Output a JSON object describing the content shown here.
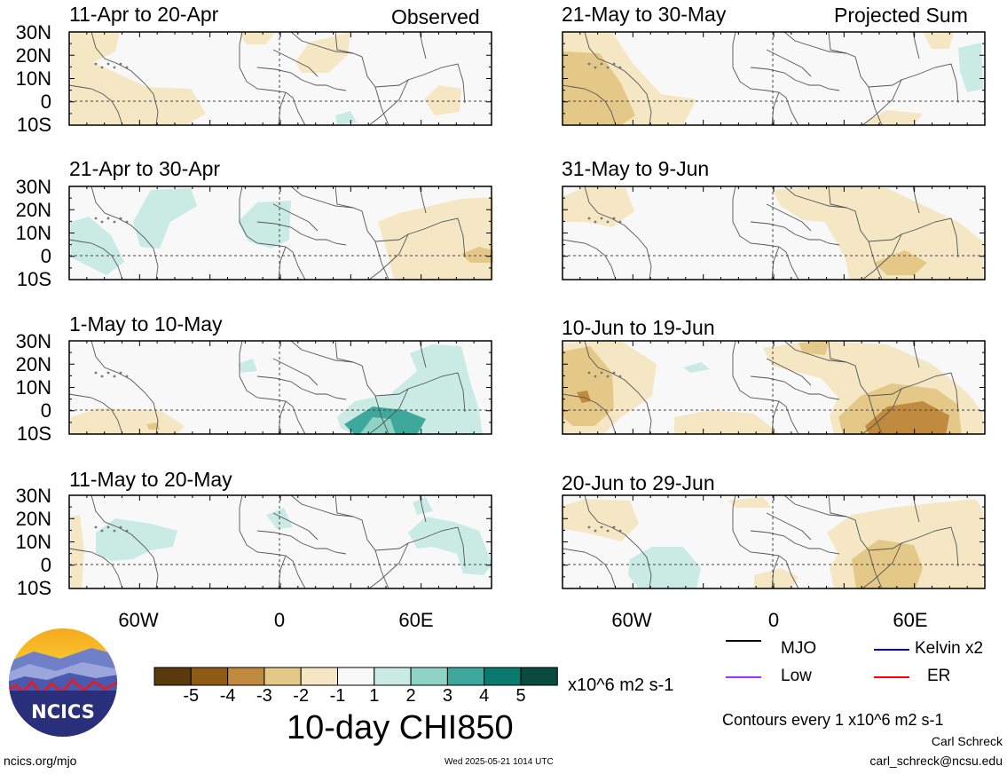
{
  "panels_left_header": "Observed",
  "panels_right_header": "Projected Sum",
  "panels": [
    {
      "title": "11-Apr to 20-Apr"
    },
    {
      "title": "21-May to 30-May"
    },
    {
      "title": "21-Apr to 30-Apr"
    },
    {
      "title": "31-May to 9-Jun"
    },
    {
      "title": "1-May to 10-May"
    },
    {
      "title": "10-Jun to 19-Jun"
    },
    {
      "title": "11-May to 20-May"
    },
    {
      "title": "20-Jun to 29-Jun"
    }
  ],
  "lat_labels": [
    "30N",
    "20N",
    "10N",
    "0",
    "10S"
  ],
  "lon_labels": [
    "60W",
    "0",
    "60E"
  ],
  "colorbar": {
    "labels": [
      "-5",
      "-4",
      "-3",
      "-2",
      "-1",
      "1",
      "2",
      "3",
      "4",
      "5"
    ],
    "units": "x10^6 m2 s-1",
    "colors": [
      "#5a3a0c",
      "#8f5a14",
      "#c08b3f",
      "#e3c888",
      "#f5e6c4",
      "#f8f8f8",
      "#c9ebe4",
      "#8fd3c7",
      "#3ea89c",
      "#0b7a6e",
      "#0b4a3f"
    ]
  },
  "main_title": "10-day CHI850",
  "legend": [
    {
      "label": "MJO",
      "color": "#000000"
    },
    {
      "label": "Kelvin x2",
      "color": "#0000ff"
    },
    {
      "label": "Low",
      "color": "#9b30ff"
    },
    {
      "label": "ER",
      "color": "#ff0000"
    }
  ],
  "contours_note": "Contours every 1 x10^6 m2 s-1",
  "author": "Carl Schreck",
  "email": "carl_schreck@ncsu.edu",
  "url": "ncics.org/mjo",
  "timestamp": "Wed 2025-05-21 1014 UTC",
  "logo_text": "NCICS"
}
